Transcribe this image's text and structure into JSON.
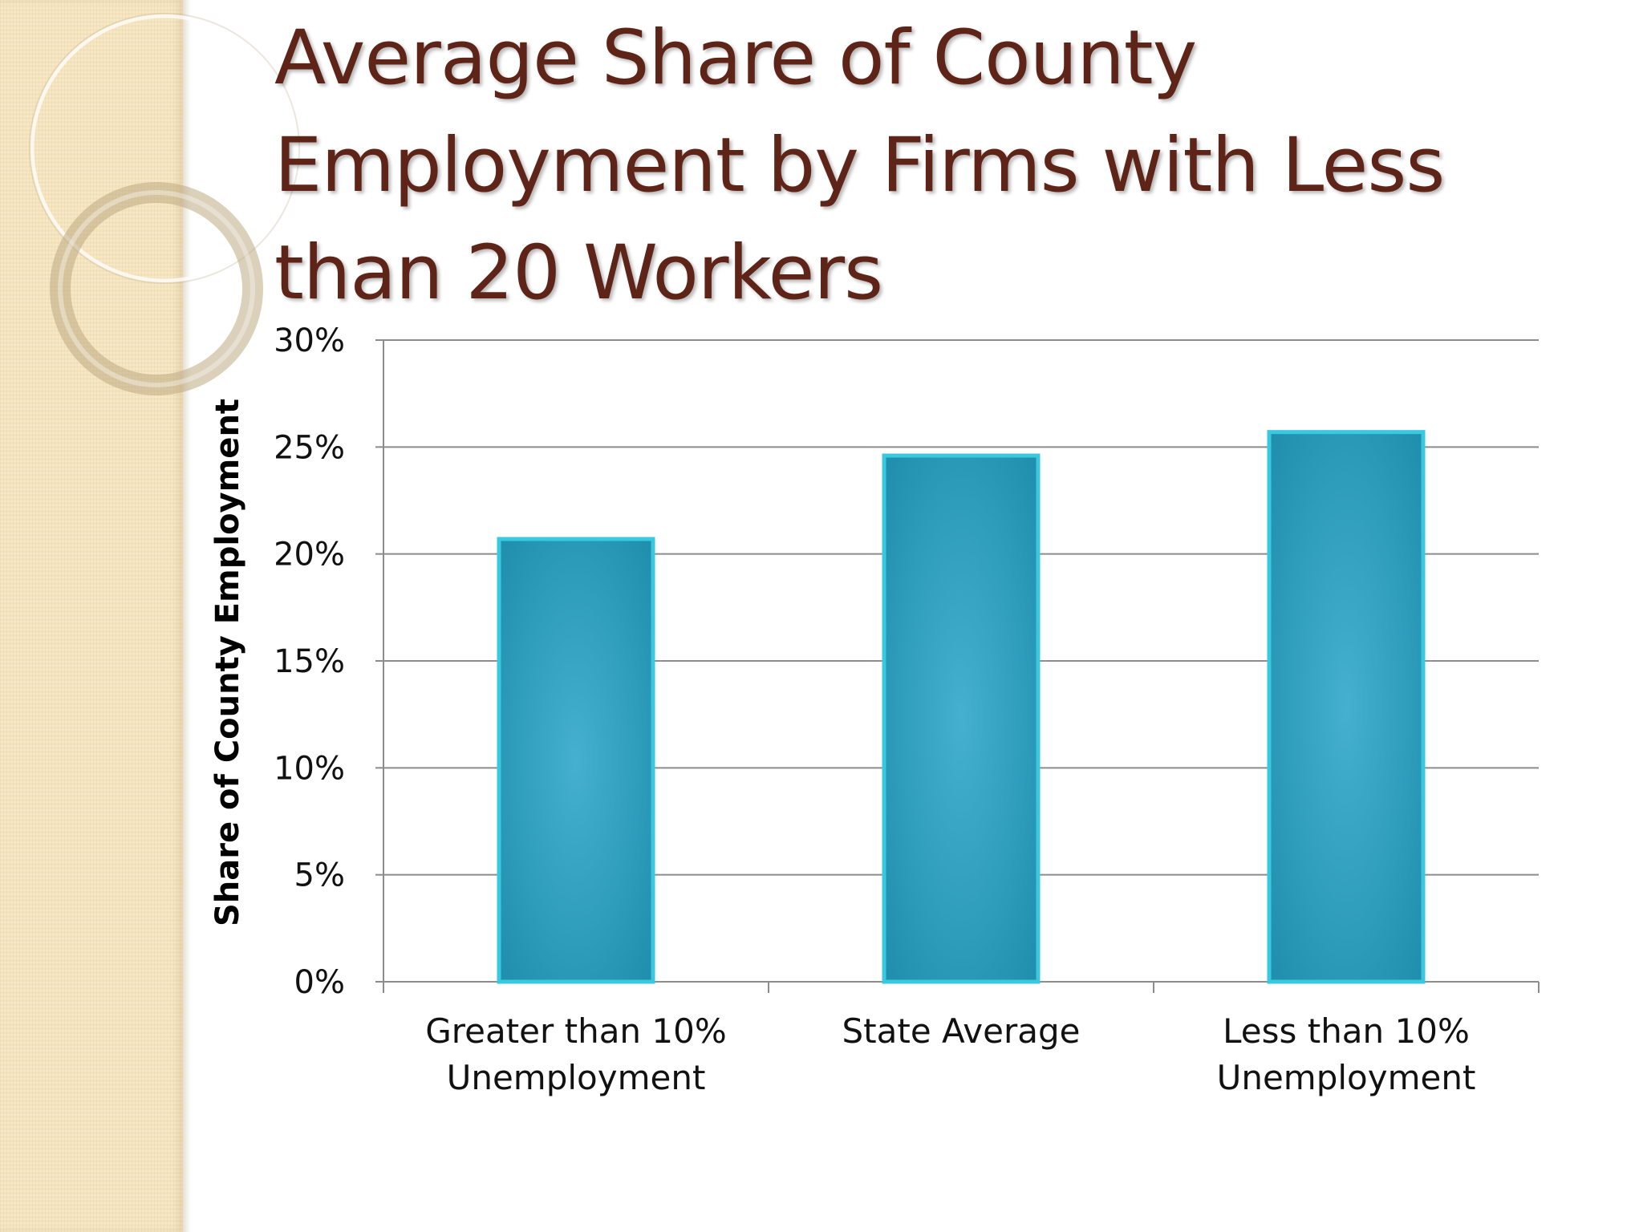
{
  "slide": {
    "title": "Average Share of County Employment by Firms with Less than 20 Workers"
  },
  "colors": {
    "title": "#5e2418",
    "bar_center": "#45b0d0",
    "bar_edge": "#1e8eac",
    "bar_outline": "#38c8e0",
    "gridline": "#8c8c8c",
    "side_strip": "#f4e3bd"
  },
  "chart_data": {
    "type": "bar",
    "categories": [
      [
        "Greater than 10%",
        "Unemployment"
      ],
      [
        "State Average"
      ],
      [
        "Less than 10%",
        "Unemployment"
      ]
    ],
    "values": [
      0.207,
      0.246,
      0.257
    ],
    "ylabel": "Share of County Employment",
    "xlabel": "",
    "ylim": [
      0,
      0.3
    ],
    "ytick_values": [
      0,
      0.05,
      0.1,
      0.15,
      0.2,
      0.25,
      0.3
    ],
    "ytick_labels": [
      "0%",
      "5%",
      "10%",
      "15%",
      "20%",
      "25%",
      "30%"
    ],
    "grid": true,
    "legend": "none"
  }
}
